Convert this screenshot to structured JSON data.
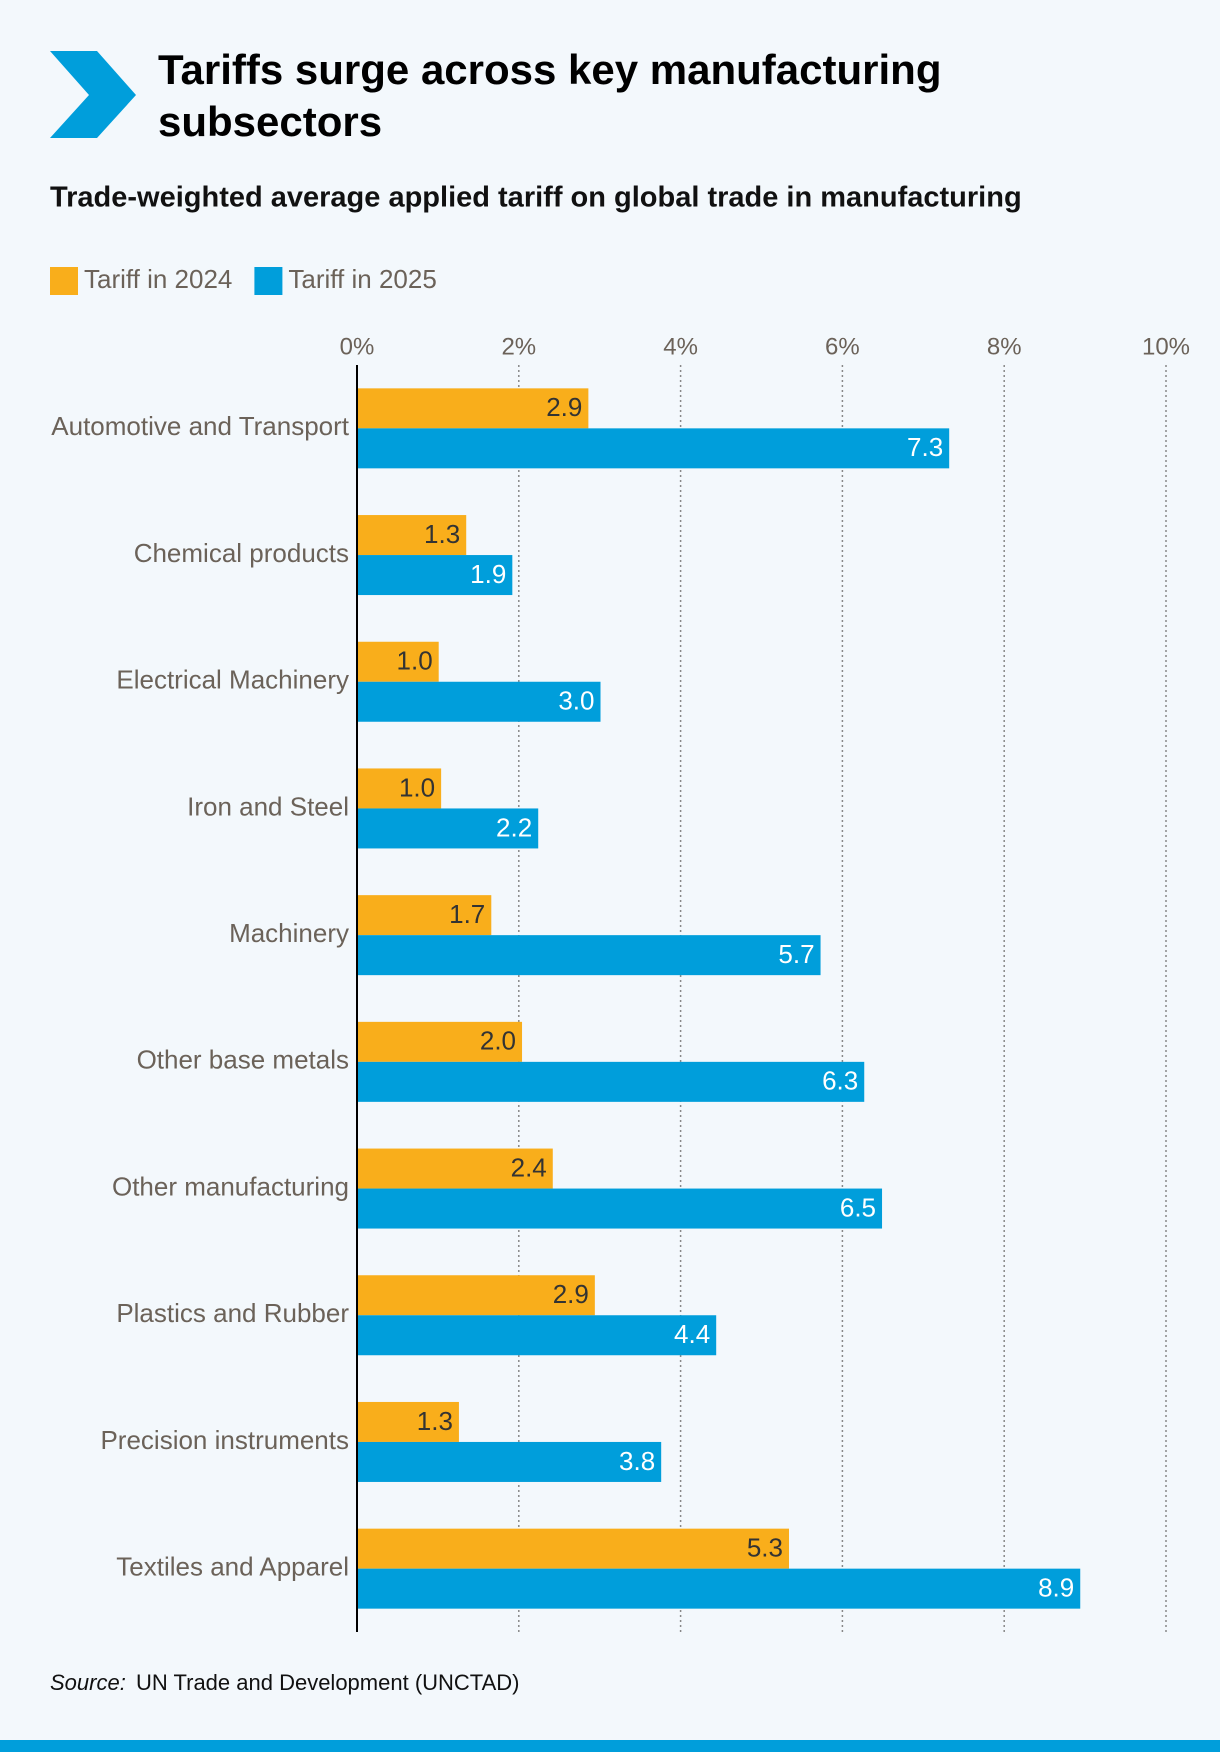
{
  "chart_data": {
    "type": "hbar",
    "title": "Tariffs surge across key manufacturing subsectors",
    "subtitle": "Trade-weighted average applied tariff on global trade in manufacturing",
    "categories": [
      "Automotive and Transport",
      "Chemical products",
      "Electrical Machinery",
      "Iron and Steel",
      "Machinery",
      "Other base metals",
      "Other manufacturing",
      "Plastics and Rubber",
      "Precision instruments",
      "Textiles and Apparel"
    ],
    "series": [
      {
        "name": "Tariff in 2024",
        "color": "#f9ae1b",
        "values": [
          2.86,
          1.35,
          1.01,
          1.04,
          1.66,
          2.04,
          2.42,
          2.94,
          1.26,
          5.34
        ],
        "value_labels": [
          "2.9",
          "1.3",
          "1.0",
          "1.0",
          "1.7",
          "2.0",
          "2.4",
          "2.9",
          "1.3",
          "5.3"
        ]
      },
      {
        "name": "Tariff in 2025",
        "color": "#009edb",
        "values": [
          7.32,
          1.92,
          3.01,
          2.24,
          5.73,
          6.27,
          6.49,
          4.44,
          3.76,
          8.94
        ],
        "value_labels": [
          "7.3",
          "1.9",
          "3.0",
          "2.2",
          "5.7",
          "6.3",
          "6.5",
          "4.4",
          "3.8",
          "8.9"
        ]
      }
    ],
    "xlim": [
      0,
      10
    ],
    "xticks": [
      {
        "value": 0,
        "label": "0%"
      },
      {
        "value": 2,
        "label": "2%"
      },
      {
        "value": 4,
        "label": "4%"
      },
      {
        "value": 6,
        "label": "6%"
      },
      {
        "value": 8,
        "label": "8%"
      },
      {
        "value": 10,
        "label": "10%"
      }
    ],
    "grid": true,
    "legend": "top-left",
    "source_label": "Source:",
    "source": "UN Trade and Development (UNCTAD)"
  }
}
